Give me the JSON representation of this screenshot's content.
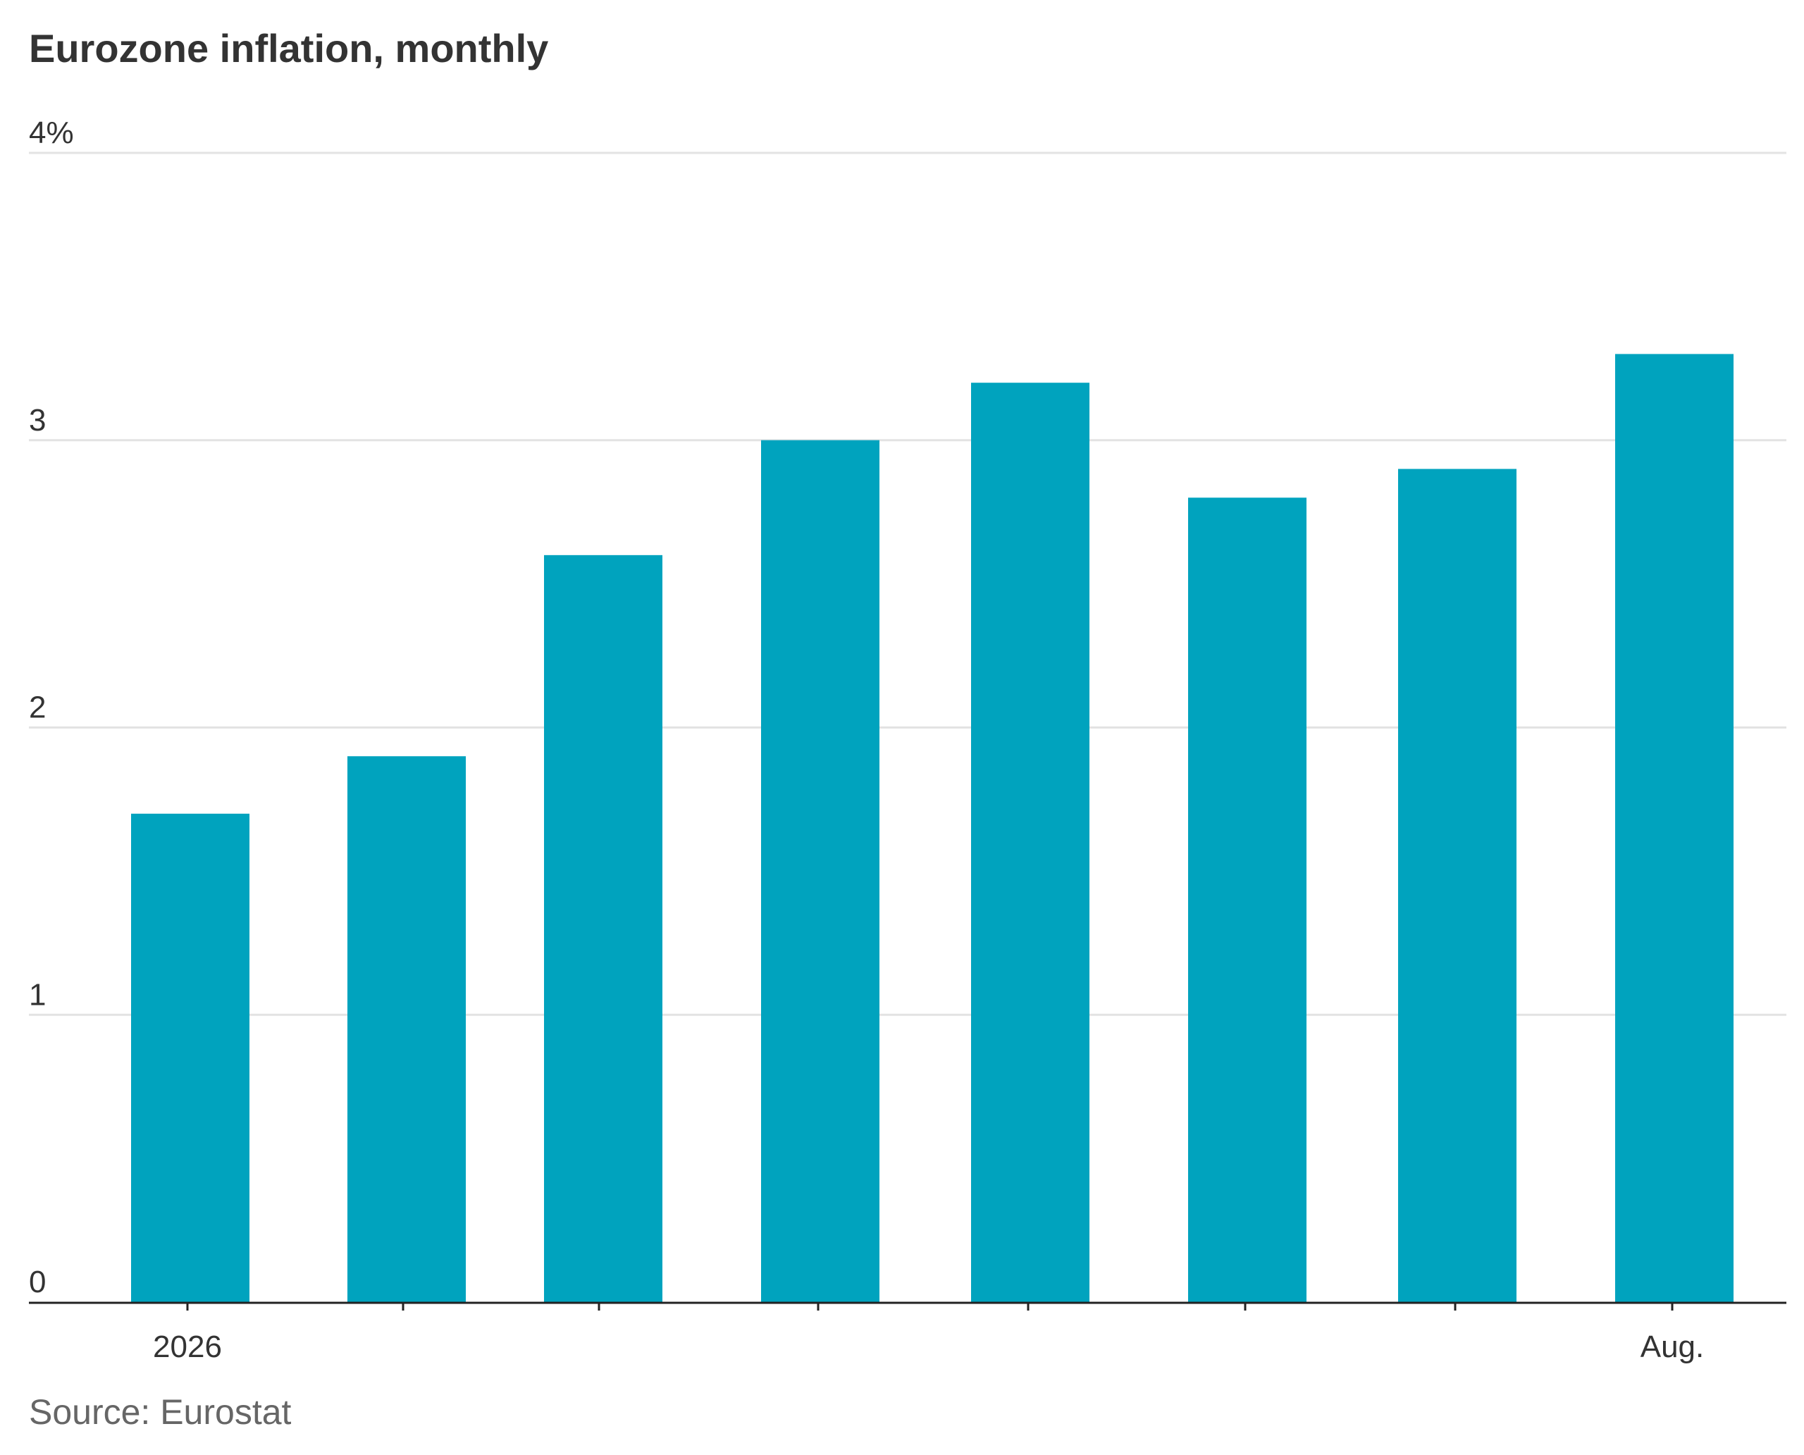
{
  "chart_data": {
    "type": "bar",
    "title": "Eurozone inflation, monthly",
    "source": "Source: Eurostat",
    "categories": [
      "2026",
      "",
      "",
      "",
      "",
      "",
      "",
      "Aug."
    ],
    "values": [
      1.7,
      1.9,
      2.6,
      3.0,
      3.2,
      2.8,
      2.9,
      3.3
    ],
    "y_ticks": [
      {
        "value": 0,
        "label": "0"
      },
      {
        "value": 1,
        "label": "1"
      },
      {
        "value": 2,
        "label": "2"
      },
      {
        "value": 3,
        "label": "3"
      },
      {
        "value": 4,
        "label": "4%"
      }
    ],
    "ylim": [
      0,
      4
    ],
    "grid": true,
    "bar_color": "#00a3be",
    "xlabel": "",
    "ylabel": ""
  }
}
